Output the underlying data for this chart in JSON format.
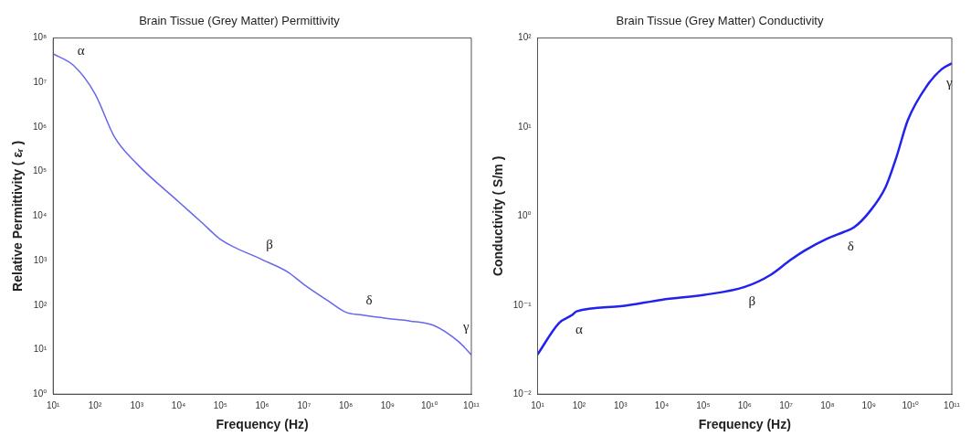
{
  "chart_data": [
    {
      "type": "line",
      "title": "Brain Tissue (Grey Matter) Permittivity",
      "xlabel": "Frequency (Hz)",
      "ylabel": "Relative Permittivity ( εᵣ )",
      "log": "xy",
      "x": [
        10,
        31,
        100,
        295,
        1000,
        10000,
        37000,
        100000,
        1000000,
        4000000,
        10000000,
        37000000,
        100000000,
        240000000,
        1000000000,
        3400000000,
        12600000000,
        50000000000,
        100000000000
      ],
      "series": [
        {
          "color": "#6666ee",
          "values": [
            44000000,
            24000000,
            5600000,
            590000,
            150000,
            21000,
            7000,
            3000,
            1050,
            560,
            290,
            126,
            69,
            60,
            50,
            44,
            35,
            15,
            7.7
          ]
        }
      ],
      "xlim": [
        10,
        100000000000
      ],
      "ylim": [
        1,
        100000000
      ],
      "xticks": [
        {
          "value": 10,
          "label": "10¹"
        },
        {
          "value": 100,
          "label": "10²"
        },
        {
          "value": 1000,
          "label": "10³"
        },
        {
          "value": 10000,
          "label": "10⁴"
        },
        {
          "value": 100000,
          "label": "10⁵"
        },
        {
          "value": 1000000,
          "label": "10⁶"
        },
        {
          "value": 10000000,
          "label": "10⁷"
        },
        {
          "value": 100000000,
          "label": "10⁸"
        },
        {
          "value": 1000000000,
          "label": "10⁹"
        },
        {
          "value": 10000000000,
          "label": "10¹⁰"
        },
        {
          "value": 100000000000,
          "label": "10¹¹"
        }
      ],
      "yticks": [
        {
          "value": 1,
          "label": "10⁰"
        },
        {
          "value": 10,
          "label": "10¹"
        },
        {
          "value": 100,
          "label": "10²"
        },
        {
          "value": 1000,
          "label": "10³"
        },
        {
          "value": 10000,
          "label": "10⁴"
        },
        {
          "value": 100000,
          "label": "10⁵"
        },
        {
          "value": 1000000,
          "label": "10⁶"
        },
        {
          "value": 10000000,
          "label": "10⁷"
        },
        {
          "value": 100000000,
          "label": "10⁸"
        }
      ],
      "annotations": [
        {
          "text": "α",
          "x": 31,
          "y": 24000000
        },
        {
          "text": "β",
          "x": 1000000,
          "y": 1050
        },
        {
          "text": "δ",
          "x": 240000000,
          "y": 60
        },
        {
          "text": "γ",
          "x": 50000000000,
          "y": 15
        }
      ]
    },
    {
      "type": "line",
      "title": "Brain Tissue (Grey Matter) Conductivity",
      "xlabel": "Frequency (Hz)",
      "ylabel": "Conductivity ( S/m )",
      "log": "xy",
      "x": [
        10,
        33,
        67,
        87,
        1000,
        10000,
        100000,
        1000000,
        4300000,
        12600000,
        28000000,
        100000000,
        240000000,
        440000000,
        1000000000,
        2500000000,
        4600000000,
        8700000000,
        25000000000,
        58000000000,
        100000000000
      ],
      "series": [
        {
          "color": "#2222ee",
          "values": [
            0.028,
            0.063,
            0.077,
            0.085,
            0.097,
            0.115,
            0.13,
            0.16,
            0.22,
            0.32,
            0.41,
            0.56,
            0.66,
            0.75,
            1.1,
            2.1,
            4.6,
            12,
            29,
            45,
            52
          ]
        }
      ],
      "xlim": [
        10,
        100000000000
      ],
      "ylim": [
        0.01,
        100
      ],
      "xticks": [
        {
          "value": 10,
          "label": "10¹"
        },
        {
          "value": 100,
          "label": "10²"
        },
        {
          "value": 1000,
          "label": "10³"
        },
        {
          "value": 10000,
          "label": "10⁴"
        },
        {
          "value": 100000,
          "label": "10⁵"
        },
        {
          "value": 1000000,
          "label": "10⁶"
        },
        {
          "value": 10000000,
          "label": "10⁷"
        },
        {
          "value": 100000000,
          "label": "10⁸"
        },
        {
          "value": 1000000000,
          "label": "10⁹"
        },
        {
          "value": 10000000000,
          "label": "10¹⁰"
        },
        {
          "value": 100000000000,
          "label": "10¹¹"
        }
      ],
      "yticks": [
        {
          "value": 0.01,
          "label": "10⁻²"
        },
        {
          "value": 0.1,
          "label": "10⁻¹"
        },
        {
          "value": 1,
          "label": "10⁰"
        },
        {
          "value": 10,
          "label": "10¹"
        },
        {
          "value": 100,
          "label": "10²"
        }
      ],
      "annotations": [
        {
          "text": "α",
          "x": 67,
          "y": 0.077
        },
        {
          "text": "β",
          "x": 1000000,
          "y": 0.16
        },
        {
          "text": "δ",
          "x": 240000000,
          "y": 0.66
        },
        {
          "text": "γ",
          "x": 58000000000,
          "y": 45
        }
      ]
    }
  ]
}
